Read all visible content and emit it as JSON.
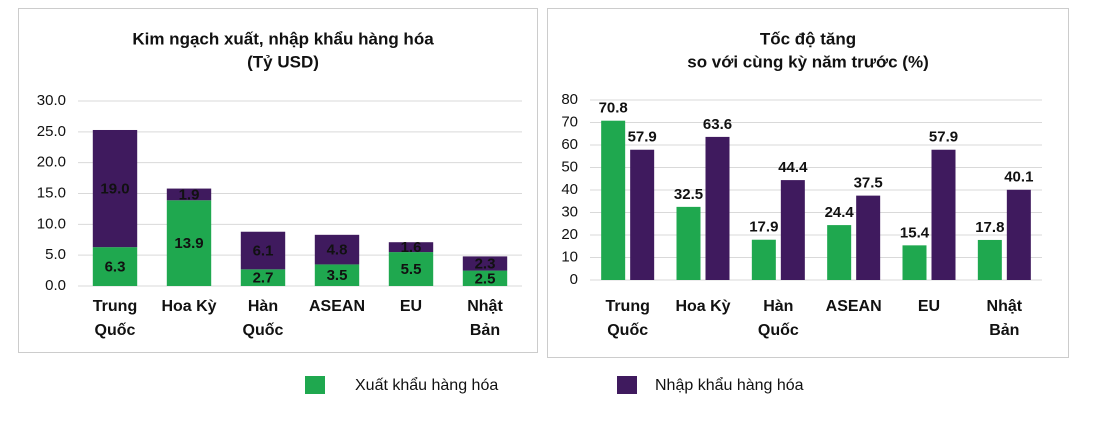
{
  "chart_data": [
    {
      "type": "stacked_bar",
      "title": "Kim ngạch xuất, nhập khẩu hàng hóa",
      "subtitle": "(Tỷ USD)",
      "categories": [
        "Trung Quốc",
        "Hoa Kỳ",
        "Hàn Quốc",
        "ASEAN",
        "EU",
        "Nhật Bản"
      ],
      "series": [
        {
          "name": "Xuất khẩu hàng hóa",
          "color": "#1fa84f",
          "values": [
            6.3,
            13.9,
            2.7,
            3.5,
            5.5,
            2.5
          ]
        },
        {
          "name": "Nhập khẩu hàng hóa",
          "color": "#3f1a5e",
          "values": [
            19.0,
            1.9,
            6.1,
            4.8,
            1.6,
            2.3
          ],
          "value_labels": [
            "19.0",
            "1.9",
            "6.1",
            "4.8",
            "1.6",
            "2.3"
          ]
        }
      ],
      "ylim": [
        0,
        30
      ],
      "yticks": [
        {
          "value": 0,
          "label": "0.0"
        },
        {
          "value": 5,
          "label": "5.0"
        },
        {
          "value": 10,
          "label": "10.0"
        },
        {
          "value": 15,
          "label": "15.0"
        },
        {
          "value": 20,
          "label": "20.0"
        },
        {
          "value": 25,
          "label": "25.0"
        },
        {
          "value": 30,
          "label": "30.0"
        }
      ],
      "grid": true
    },
    {
      "type": "grouped_bar",
      "title": "Tốc độ tăng",
      "subtitle": "so với cùng kỳ năm trước (%)",
      "categories": [
        "Trung Quốc",
        "Hoa Kỳ",
        "Hàn Quốc",
        "ASEAN",
        "EU",
        "Nhật Bản"
      ],
      "series": [
        {
          "color": "#1fa84f",
          "values": [
            70.8,
            32.5,
            17.9,
            24.4,
            15.4,
            17.8
          ]
        },
        {
          "color": "#3f1a5e",
          "values": [
            57.9,
            63.6,
            44.4,
            37.5,
            57.9,
            40.1
          ]
        }
      ],
      "ylim": [
        0,
        80
      ],
      "yticks": [
        0,
        10,
        20,
        30,
        40,
        50,
        60,
        70,
        80
      ],
      "grid": true
    }
  ]
}
